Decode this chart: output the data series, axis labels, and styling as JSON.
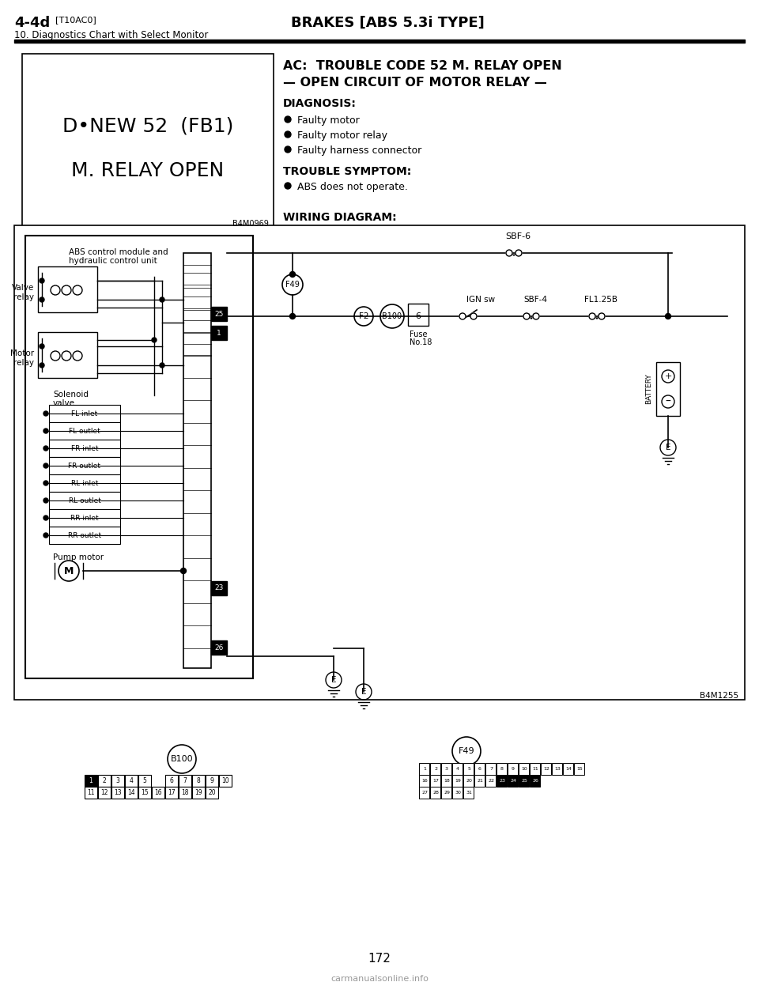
{
  "page_bg": "#ffffff",
  "header_left_bold": "4-4d",
  "header_left_small": "[T10AC0]",
  "header_center": "BRAKES [ABS 5.3i TYPE]",
  "header_sub": "10. Diagnostics Chart with Select Monitor",
  "box_line1": "D•NEW 52  (FB1)",
  "box_line2": "M. RELAY OPEN",
  "box_ref": "B4M0969",
  "ac_title1": "AC:  TROUBLE CODE 52 M. RELAY OPEN",
  "ac_title2": "— OPEN CIRCUIT OF MOTOR RELAY —",
  "diagnosis_label": "DIAGNOSIS:",
  "diagnosis_items": [
    "Faulty motor",
    "Faulty motor relay",
    "Faulty harness connector"
  ],
  "trouble_label": "TROUBLE SYMPTOM:",
  "trouble_items": [
    "ABS does not operate."
  ],
  "wiring_label": "WIRING DIAGRAM:",
  "page_number": "172",
  "watermark": "carmanualsonline.info",
  "ref_b4m1255": "B4M1255",
  "sv_labels": [
    "FL inlet",
    "FL outlet",
    "FR inlet",
    "FR outlet",
    "RL inlet",
    "RL outlet",
    "RR inlet",
    "RR outlet"
  ]
}
